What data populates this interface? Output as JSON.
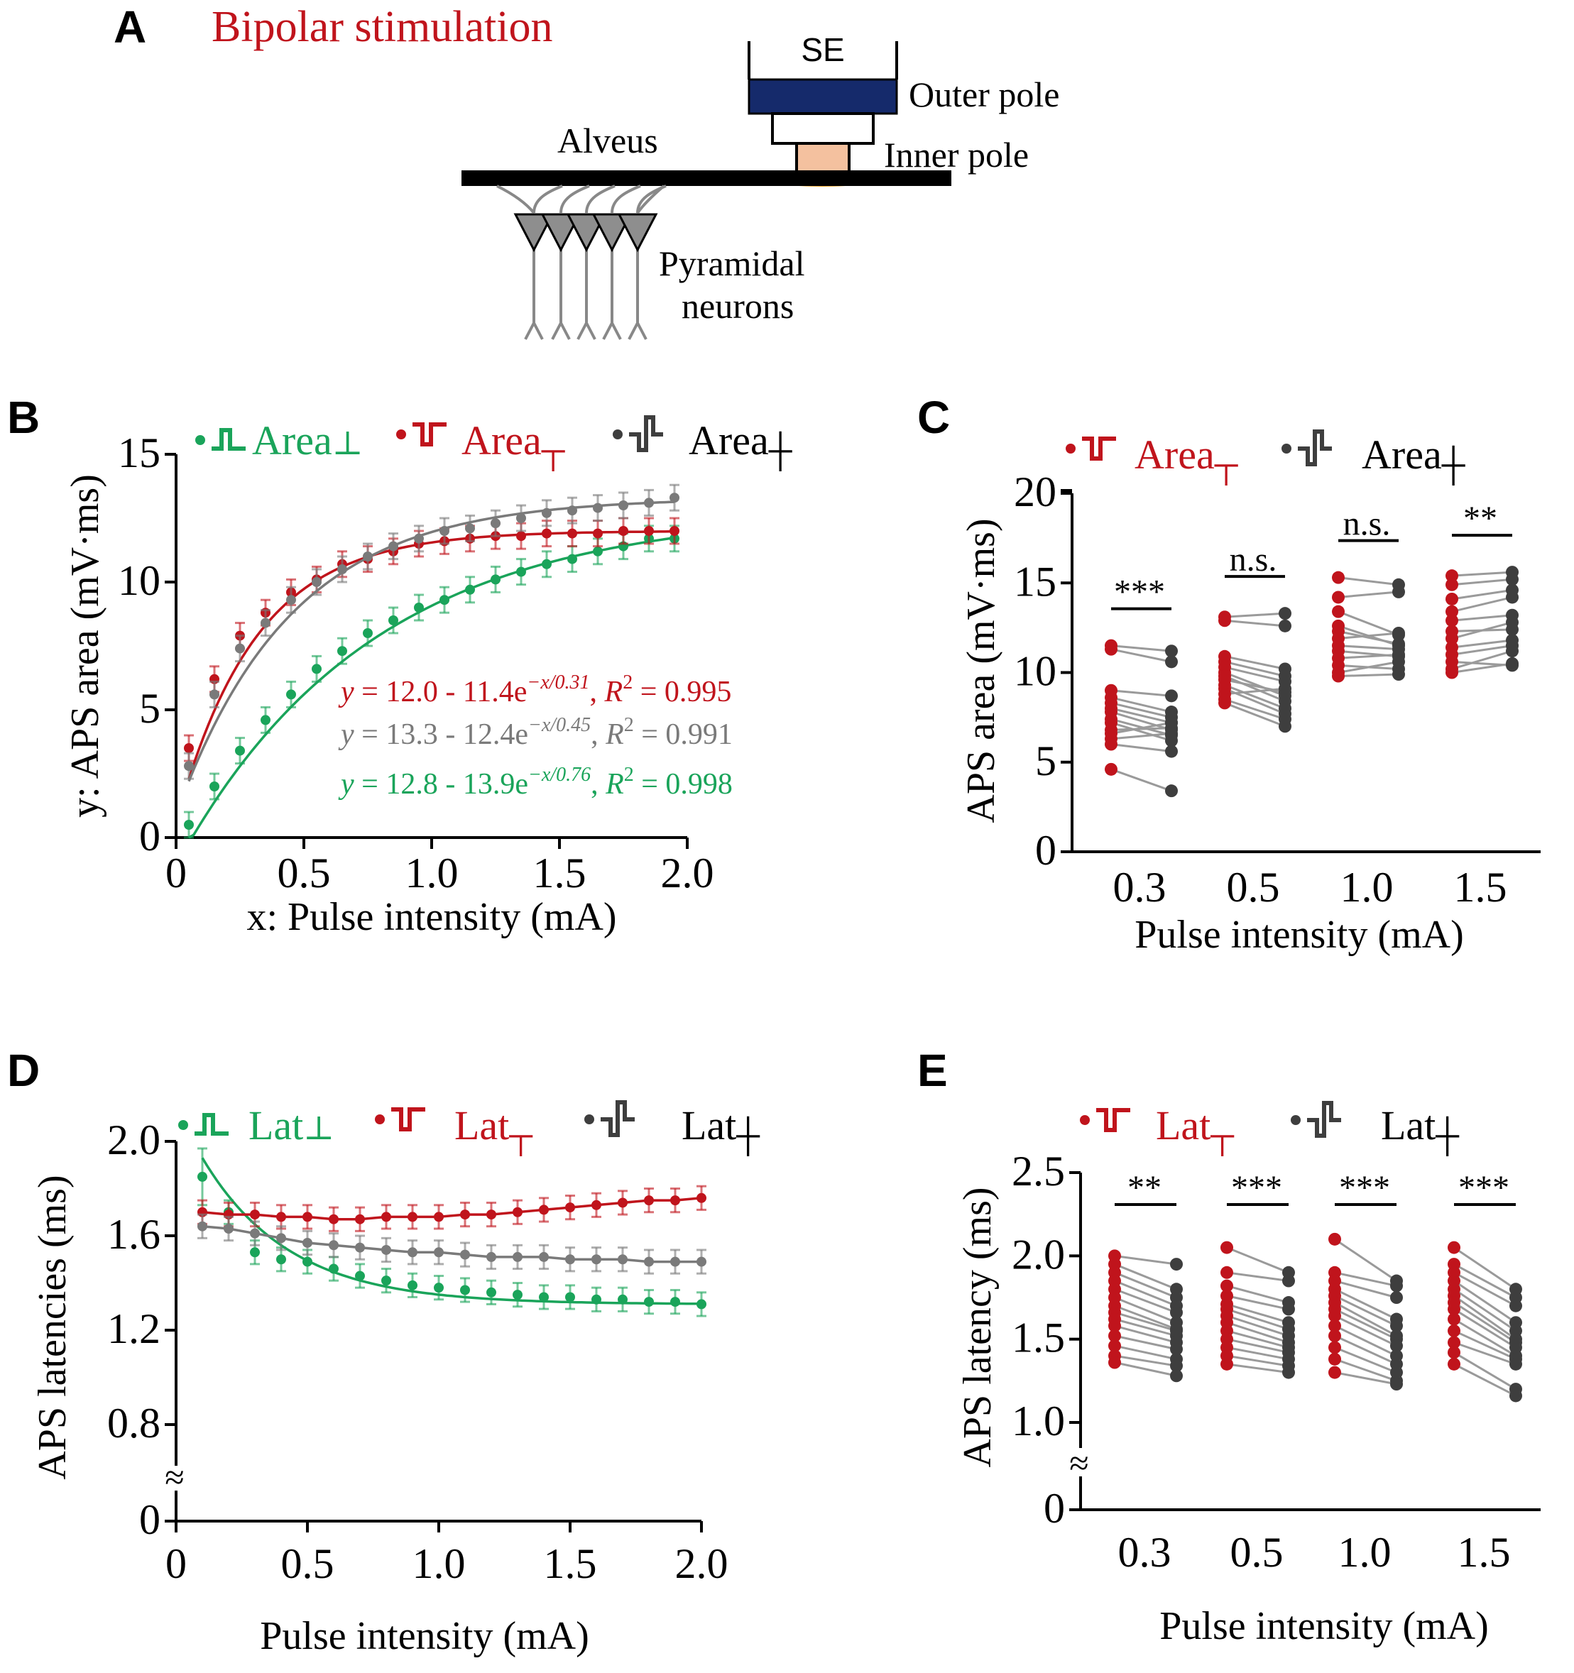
{
  "colors": {
    "green": "#1aa45a",
    "red": "#c0141c",
    "gray": "#7a7a7a",
    "dark": "#3e3e3e",
    "navy": "#152a6b",
    "peach": "#f4c19f",
    "orange": "#f2a81d",
    "neuron": "#888888",
    "line": "#9a9a9a"
  },
  "panel_a": {
    "letter": "A",
    "title": "Bipolar stimulation",
    "labels": {
      "se": "SE",
      "outer_pole": "Outer pole",
      "inner_pole": "Inner pole",
      "alveus": "Alveus",
      "pyramidal_line1": "Pyramidal",
      "pyramidal_line2": "neurons"
    }
  },
  "chart_data": [
    {
      "panel": "B",
      "type": "line",
      "xlabel": "x: Pulse intensity (mA)",
      "ylabel": "y: APS area (mV·ms)",
      "xlim": [
        0,
        2.0
      ],
      "ylim": [
        0,
        15
      ],
      "xticks": [
        "0",
        "0.5",
        "1.0",
        "1.5",
        "2.0"
      ],
      "yticks": [
        "0",
        "5",
        "10",
        "15"
      ],
      "legend": [
        "Area⊥",
        "Area┬",
        "Area┼"
      ],
      "x": [
        0.05,
        0.15,
        0.25,
        0.35,
        0.45,
        0.55,
        0.65,
        0.75,
        0.85,
        0.95,
        1.05,
        1.15,
        1.25,
        1.35,
        1.45,
        1.55,
        1.65,
        1.75,
        1.85,
        1.95
      ],
      "series": [
        {
          "name": "Area⊥",
          "color": "green",
          "values": [
            0.5,
            2.0,
            3.4,
            4.6,
            5.6,
            6.6,
            7.3,
            8.0,
            8.5,
            9.0,
            9.3,
            9.7,
            10.1,
            10.4,
            10.7,
            10.9,
            11.2,
            11.4,
            11.7,
            11.7
          ],
          "error": 0.5,
          "fit": {
            "a": 12.8,
            "b": 13.9,
            "tau": 0.76
          }
        },
        {
          "name": "Area┬",
          "color": "red",
          "values": [
            3.5,
            6.2,
            7.9,
            8.8,
            9.6,
            10.1,
            10.7,
            10.9,
            11.2,
            11.5,
            11.6,
            11.7,
            11.8,
            11.8,
            11.9,
            11.9,
            11.9,
            12.0,
            12.0,
            12.0
          ],
          "error": 0.5,
          "fit": {
            "a": 12.0,
            "b": 11.4,
            "tau": 0.31
          }
        },
        {
          "name": "Area┼",
          "color": "gray",
          "values": [
            2.8,
            5.6,
            7.4,
            8.4,
            9.3,
            10.0,
            10.5,
            11.0,
            11.4,
            11.7,
            12.0,
            12.1,
            12.3,
            12.5,
            12.7,
            12.8,
            12.9,
            13.0,
            13.1,
            13.3
          ],
          "error": 0.5,
          "fit": {
            "a": 13.3,
            "b": 12.4,
            "tau": 0.45
          }
        }
      ],
      "equations": [
        {
          "color": "red",
          "lhs": "y",
          "body": " = 12.0 - 11.4e",
          "exp": "−x/0.31",
          "sep": ",  ",
          "r": "R",
          "r_sup": "2",
          "r_val": " = 0.995"
        },
        {
          "color": "gray",
          "lhs": "y",
          "body": " = 13.3 - 12.4e",
          "exp": "−x/0.45",
          "sep": ",  ",
          "r": "R",
          "r_sup": "2",
          "r_val": " = 0.991"
        },
        {
          "color": "green",
          "lhs": "y",
          "body": " = 12.8 - 13.9e",
          "exp": "−x/0.76",
          "sep": ",  ",
          "r": "R",
          "r_sup": "2",
          "r_val": " = 0.998"
        }
      ]
    },
    {
      "panel": "C",
      "type": "scatter",
      "xlabel": "Pulse intensity (mA)",
      "ylabel": "APS area (mV·ms)",
      "ylim": [
        0,
        20
      ],
      "yticks": [
        "0",
        "5",
        "10",
        "15",
        "20"
      ],
      "categories": [
        "0.3",
        "0.5",
        "1.0",
        "1.5"
      ],
      "legend": [
        "Area┬",
        "Area┼"
      ],
      "significance": [
        "***",
        "n.s.",
        "n.s.",
        "**"
      ],
      "pairs": [
        {
          "red": [
            11.5,
            11.3,
            9.0,
            8.6,
            8.3,
            8.0,
            7.8,
            7.4,
            7.2,
            6.8,
            6.6,
            6.3,
            6.0,
            4.6
          ],
          "dark": [
            11.2,
            10.6,
            8.7,
            7.8,
            7.5,
            7.2,
            6.8,
            6.5,
            6.2,
            6.9,
            7.2,
            6.6,
            5.6,
            3.4
          ]
        },
        {
          "red": [
            13.1,
            12.9,
            10.9,
            10.6,
            10.3,
            10.0,
            9.8,
            9.6,
            9.3,
            9.1,
            8.8,
            8.5,
            8.3
          ],
          "dark": [
            13.3,
            12.6,
            10.2,
            9.8,
            9.5,
            8.7,
            8.4,
            8.9,
            8.0,
            7.7,
            9.1,
            7.4,
            7.0
          ]
        },
        {
          "red": [
            15.3,
            14.2,
            13.4,
            12.6,
            12.3,
            11.9,
            11.5,
            11.2,
            10.8,
            10.4,
            10.0,
            9.8
          ],
          "dark": [
            14.9,
            14.5,
            12.1,
            11.5,
            11.6,
            12.2,
            11.3,
            10.9,
            11.0,
            10.2,
            10.6,
            9.9
          ]
        },
        {
          "red": [
            15.4,
            14.9,
            14.1,
            13.4,
            12.9,
            12.3,
            11.9,
            11.4,
            11.0,
            10.6,
            10.2,
            10.0
          ],
          "dark": [
            15.6,
            15.2,
            14.6,
            14.2,
            13.2,
            12.4,
            12.8,
            11.8,
            11.5,
            10.4,
            11.2,
            10.5
          ]
        }
      ]
    },
    {
      "panel": "D",
      "type": "line",
      "xlabel": "Pulse intensity (mA)",
      "ylabel": "APS latencies (ms)",
      "xlim": [
        0,
        2.0
      ],
      "ylim": [
        0.8,
        2.0
      ],
      "axis_break": true,
      "xticks": [
        "0",
        "0.5",
        "1.0",
        "1.5",
        "2.0"
      ],
      "yticks": [
        "0",
        "0.8",
        "1.2",
        "1.6",
        "2.0"
      ],
      "legend": [
        "Lat⊥",
        "Lat┬",
        "Lat┼"
      ],
      "x": [
        0.1,
        0.2,
        0.3,
        0.4,
        0.5,
        0.6,
        0.7,
        0.8,
        0.9,
        1.0,
        1.1,
        1.2,
        1.3,
        1.4,
        1.5,
        1.6,
        1.7,
        1.8,
        1.9,
        2.0
      ],
      "series": [
        {
          "name": "Lat⊥",
          "color": "green",
          "values": [
            1.85,
            1.7,
            1.53,
            1.5,
            1.49,
            1.46,
            1.43,
            1.41,
            1.39,
            1.38,
            1.37,
            1.36,
            1.35,
            1.34,
            1.34,
            1.33,
            1.33,
            1.32,
            1.32,
            1.31
          ],
          "error": 0.05,
          "first_error": 0.12
        },
        {
          "name": "Lat┬",
          "color": "red",
          "values": [
            1.7,
            1.69,
            1.69,
            1.68,
            1.68,
            1.67,
            1.67,
            1.68,
            1.68,
            1.68,
            1.69,
            1.69,
            1.7,
            1.71,
            1.72,
            1.73,
            1.74,
            1.75,
            1.75,
            1.76
          ],
          "error": 0.05
        },
        {
          "name": "Lat┼",
          "color": "gray",
          "values": [
            1.64,
            1.63,
            1.61,
            1.59,
            1.57,
            1.56,
            1.55,
            1.54,
            1.53,
            1.53,
            1.52,
            1.51,
            1.51,
            1.51,
            1.5,
            1.5,
            1.5,
            1.49,
            1.49,
            1.49
          ],
          "error": 0.05
        }
      ]
    },
    {
      "panel": "E",
      "type": "scatter",
      "xlabel": "Pulse intensity (mA)",
      "ylabel": "APS latency (ms)",
      "ylim": [
        1.0,
        2.5
      ],
      "axis_break": true,
      "yticks": [
        "0",
        "1.0",
        "1.5",
        "2.0",
        "2.5"
      ],
      "categories": [
        "0.3",
        "0.5",
        "1.0",
        "1.5"
      ],
      "legend": [
        "Lat┬",
        "Lat┼"
      ],
      "significance": [
        "**",
        "***",
        "***",
        "***"
      ],
      "pairs": [
        {
          "red": [
            2.0,
            1.95,
            1.9,
            1.85,
            1.8,
            1.75,
            1.7,
            1.66,
            1.62,
            1.58,
            1.52,
            1.46,
            1.4,
            1.36
          ],
          "dark": [
            1.95,
            1.8,
            1.75,
            1.7,
            1.66,
            1.6,
            1.56,
            1.55,
            1.52,
            1.48,
            1.44,
            1.38,
            1.34,
            1.28
          ]
        },
        {
          "red": [
            2.05,
            1.9,
            1.82,
            1.76,
            1.71,
            1.68,
            1.64,
            1.6,
            1.55,
            1.5,
            1.45,
            1.4,
            1.35
          ],
          "dark": [
            1.9,
            1.85,
            1.72,
            1.68,
            1.6,
            1.56,
            1.52,
            1.48,
            1.45,
            1.42,
            1.38,
            1.34,
            1.3
          ]
        },
        {
          "red": [
            2.1,
            1.9,
            1.85,
            1.8,
            1.76,
            1.72,
            1.68,
            1.64,
            1.58,
            1.52,
            1.45,
            1.38,
            1.3
          ],
          "dark": [
            1.85,
            1.82,
            1.75,
            1.62,
            1.58,
            1.52,
            1.5,
            1.46,
            1.4,
            1.35,
            1.3,
            1.25,
            1.23
          ]
        },
        {
          "red": [
            2.05,
            1.95,
            1.9,
            1.85,
            1.8,
            1.76,
            1.72,
            1.68,
            1.62,
            1.55,
            1.48,
            1.42,
            1.35
          ],
          "dark": [
            1.8,
            1.75,
            1.7,
            1.6,
            1.55,
            1.5,
            1.48,
            1.45,
            1.4,
            1.38,
            1.35,
            1.2,
            1.16
          ]
        }
      ]
    }
  ]
}
